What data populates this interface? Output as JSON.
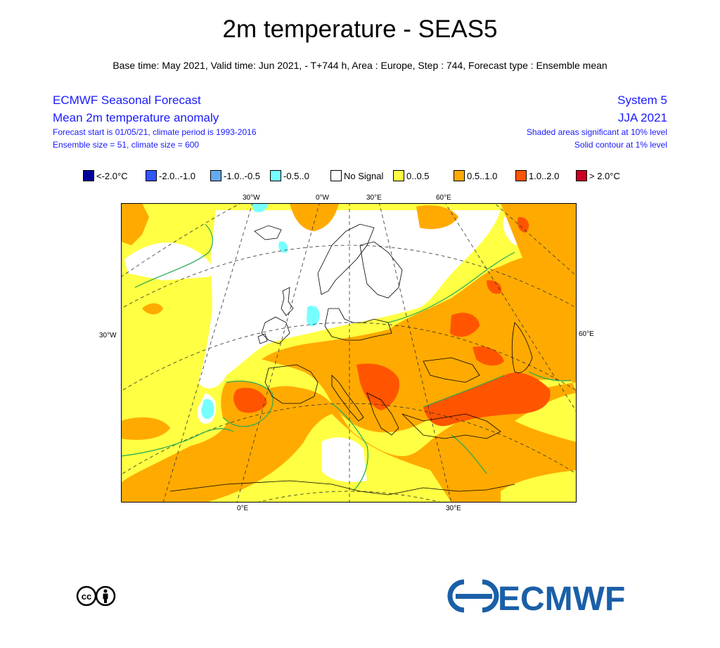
{
  "header": {
    "title": "2m temperature - SEAS5",
    "subtitle": "Base time: May 2021, Valid time: Jun 2021, - T+744 h, Area : Europe, Step : 744, Forecast type : Ensemble mean"
  },
  "left_info": {
    "line1": "ECMWF Seasonal Forecast",
    "line2": "Mean 2m temperature anomaly",
    "line3": "Forecast start is 01/05/21, climate period is 1993-2016",
    "line4": "Ensemble size = 51, climate size = 600"
  },
  "right_info": {
    "line1": "System 5",
    "line2": "JJA 2021",
    "line3": "Shaded areas significant at 10% level",
    "line4": "Solid contour at 1% level"
  },
  "legend": [
    {
      "label": "<-2.0°C",
      "color": "#000099"
    },
    {
      "label": "-2.0..-1.0",
      "color": "#3355ff"
    },
    {
      "label": "-1.0..-0.5",
      "color": "#66aaee"
    },
    {
      "label": "-0.5..0",
      "color": "#77ffff"
    },
    {
      "label": "No Signal",
      "color": "#ffffff"
    },
    {
      "label": "0..0.5",
      "color": "#ffff44"
    },
    {
      "label": "0.5..1.0",
      "color": "#ffaa00"
    },
    {
      "label": "1.0..2.0",
      "color": "#ff5500"
    },
    {
      "label": "> 2.0°C",
      "color": "#cc0022"
    }
  ],
  "map": {
    "top_ticks": [
      "30°W",
      "0°W",
      "30°E",
      "60°E"
    ],
    "bottom_ticks": [
      "0°E",
      "30°E"
    ],
    "left_tick": "30°W",
    "right_tick": "60°E",
    "contour_color": "#22aa55",
    "coast_color": "#000000"
  },
  "footer": {
    "brand": "ECMWF",
    "brand_color": "#1a5fa8"
  }
}
